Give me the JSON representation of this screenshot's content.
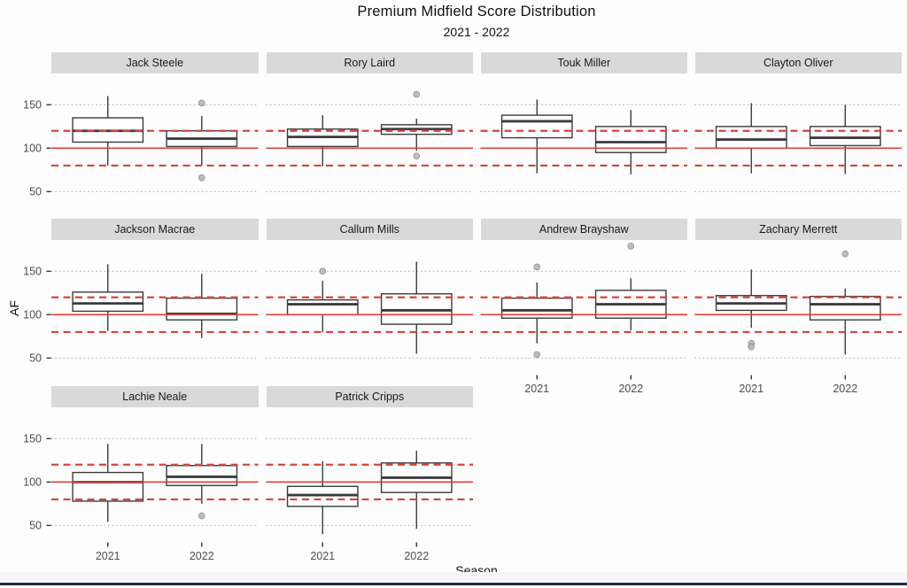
{
  "title": "Premium Midfield Score Distribution",
  "subtitle": "2021 - 2022",
  "x_axis_label": "Season",
  "y_axis_label": "AF",
  "colors": {
    "reference_red": "#de4136",
    "box_stroke": "#3b3b3b",
    "box_fill": "#ffffff",
    "gridline": "#c8c8c8",
    "strip_bg": "#d9d9d9",
    "strip_text": "#1a1a1a",
    "tick_text": "#4d4d4d",
    "tick_mark": "#333333",
    "outlier_fill": "#b3b3b3",
    "outlier_stroke": "#8f8f8f",
    "bottom_bar": "#1d2c47"
  },
  "chart_data": {
    "type": "boxplot",
    "title": "Premium Midfield Score Distribution",
    "subtitle": "2021 - 2022",
    "xlabel": "Season",
    "ylabel": "AF",
    "facet_by": "player",
    "x_categories": [
      "2021",
      "2022"
    ],
    "y_ticks": [
      50,
      100,
      150
    ],
    "ylim": [
      32,
      184
    ],
    "grid": "horizontal dotted at y ticks",
    "legend": "none",
    "reference_lines": {
      "solid": [
        100
      ],
      "dashed": [
        80,
        120
      ]
    },
    "facets": [
      {
        "player": "Jack Steele",
        "boxes": [
          {
            "season": "2021",
            "low": 80,
            "q1": 107,
            "median": 120,
            "q3": 135,
            "high": 160,
            "outliers": []
          },
          {
            "season": "2022",
            "low": 80,
            "q1": 102,
            "median": 111,
            "q3": 120,
            "high": 137,
            "outliers": [
              152,
              66
            ]
          }
        ]
      },
      {
        "player": "Rory Laird",
        "boxes": [
          {
            "season": "2021",
            "low": 79,
            "q1": 102,
            "median": 113,
            "q3": 122,
            "high": 138,
            "outliers": []
          },
          {
            "season": "2022",
            "low": 97,
            "q1": 116,
            "median": 122,
            "q3": 127,
            "high": 134,
            "outliers": [
              162,
              91
            ]
          }
        ]
      },
      {
        "player": "Touk Miller",
        "boxes": [
          {
            "season": "2021",
            "low": 71,
            "q1": 112,
            "median": 131,
            "q3": 138,
            "high": 156,
            "outliers": []
          },
          {
            "season": "2022",
            "low": 70,
            "q1": 95,
            "median": 107,
            "q3": 125,
            "high": 144,
            "outliers": []
          }
        ]
      },
      {
        "player": "Clayton Oliver",
        "boxes": [
          {
            "season": "2021",
            "low": 71,
            "q1": 100,
            "median": 110,
            "q3": 125,
            "high": 152,
            "outliers": []
          },
          {
            "season": "2022",
            "low": 70,
            "q1": 103,
            "median": 112,
            "q3": 125,
            "high": 150,
            "outliers": []
          }
        ]
      },
      {
        "player": "Jackson Macrae",
        "boxes": [
          {
            "season": "2021",
            "low": 81,
            "q1": 104,
            "median": 113,
            "q3": 126,
            "high": 158,
            "outliers": []
          },
          {
            "season": "2022",
            "low": 73,
            "q1": 94,
            "median": 101,
            "q3": 119,
            "high": 147,
            "outliers": []
          }
        ]
      },
      {
        "player": "Callum Mills",
        "boxes": [
          {
            "season": "2021",
            "low": 80,
            "q1": 100,
            "median": 112,
            "q3": 117,
            "high": 139,
            "outliers": [
              150
            ]
          },
          {
            "season": "2022",
            "low": 55,
            "q1": 89,
            "median": 105,
            "q3": 124,
            "high": 161,
            "outliers": []
          }
        ]
      },
      {
        "player": "Andrew Brayshaw",
        "boxes": [
          {
            "season": "2021",
            "low": 67,
            "q1": 96,
            "median": 105,
            "q3": 119,
            "high": 137,
            "outliers": [
              155,
              54
            ]
          },
          {
            "season": "2022",
            "low": 82,
            "q1": 96,
            "median": 112,
            "q3": 128,
            "high": 142,
            "outliers": [
              179
            ]
          }
        ]
      },
      {
        "player": "Zachary Merrett",
        "boxes": [
          {
            "season": "2021",
            "low": 85,
            "q1": 105,
            "median": 113,
            "q3": 122,
            "high": 152,
            "outliers": [
              67,
              63
            ]
          },
          {
            "season": "2022",
            "low": 54,
            "q1": 94,
            "median": 112,
            "q3": 121,
            "high": 130,
            "outliers": [
              170
            ]
          }
        ]
      },
      {
        "player": "Lachie Neale",
        "boxes": [
          {
            "season": "2021",
            "low": 54,
            "q1": 78,
            "median": 100,
            "q3": 111,
            "high": 144,
            "outliers": []
          },
          {
            "season": "2022",
            "low": 75,
            "q1": 96,
            "median": 106,
            "q3": 119,
            "high": 144,
            "outliers": [
              61
            ]
          }
        ]
      },
      {
        "player": "Patrick Cripps",
        "boxes": [
          {
            "season": "2021",
            "low": 40,
            "q1": 72,
            "median": 85,
            "q3": 95,
            "high": 124,
            "outliers": []
          },
          {
            "season": "2022",
            "low": 46,
            "q1": 88,
            "median": 105,
            "q3": 122,
            "high": 136,
            "outliers": []
          }
        ]
      }
    ]
  }
}
